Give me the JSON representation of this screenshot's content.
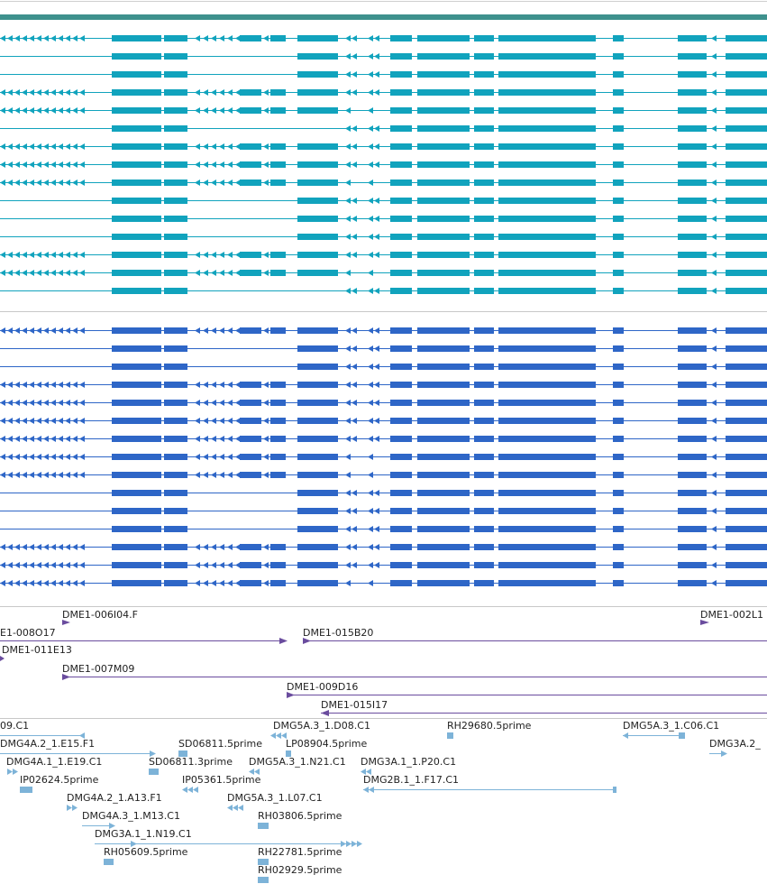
{
  "colors": {
    "header_bar": "#3E918D",
    "track_a": "#11A3BD",
    "track_b": "#2E66C7",
    "bac": "#6A4C9E",
    "est": "#7DB3D8",
    "divider": "#C8C8C8",
    "label": "#222222"
  },
  "gene_tracks": [
    {
      "name": "transcripts-cyan",
      "rows": [
        "full",
        "mid",
        "mid",
        "full",
        "alt",
        "short",
        "full",
        "full",
        "alt",
        "mid",
        "mid",
        "mid",
        "full",
        "alt",
        "short"
      ]
    },
    {
      "name": "transcripts-blue",
      "rows": [
        "full",
        "mid",
        "mid",
        "full",
        "full",
        "full",
        "full",
        "alt",
        "alt",
        "mid",
        "mid",
        "mid",
        "full",
        "full",
        "alt"
      ]
    }
  ],
  "bac_clones": [
    {
      "label": "DME1-006I04.F",
      "start": 69,
      "end": 78,
      "dir": "right"
    },
    {
      "label": "DME1-002L1",
      "start": 777,
      "end": 786,
      "dir": "right"
    },
    {
      "label": "E1-008O17",
      "start": 0,
      "end": 318,
      "dir": "left"
    },
    {
      "label": "DME1-015B20",
      "start": 336,
      "end": 851,
      "dir": "right"
    },
    {
      "label": "DME1-011E13",
      "start": 0,
      "end": 5,
      "dir": "right"
    },
    {
      "label": "DME1-007M09",
      "start": 69,
      "end": 851,
      "dir": "right"
    },
    {
      "label": "DME1-009D16",
      "start": 318,
      "end": 851,
      "dir": "right"
    },
    {
      "label": "DME1-015I17",
      "start": 356,
      "end": 851,
      "dir": "left"
    }
  ],
  "est_features": [
    {
      "label": "09.C1"
    },
    {
      "label": "DMG5A.3_1.D08.C1"
    },
    {
      "label": "RH29680.5prime"
    },
    {
      "label": "DMG5A.3_1.C06.C1"
    },
    {
      "label": "DMG4A.2_1.E15.F1"
    },
    {
      "label": "SD06811.5prime"
    },
    {
      "label": "LP08904.5prime"
    },
    {
      "label": "DMG3A.2_"
    },
    {
      "label": "DMG4A.1_1.E19.C1"
    },
    {
      "label": "SD06811.3prime"
    },
    {
      "label": "DMG5A.3_1.N21.C1"
    },
    {
      "label": "DMG3A.1_1.P20.C1"
    },
    {
      "label": "IP02624.5prime"
    },
    {
      "label": "IP05361.5prime"
    },
    {
      "label": "DMG2B.1_1.F17.C1"
    },
    {
      "label": "DMG4A.2_1.A13.F1"
    },
    {
      "label": "DMG5A.3_1.L07.C1"
    },
    {
      "label": "DMG4A.3_1.M13.C1"
    },
    {
      "label": "RH03806.5prime"
    },
    {
      "label": "DMG3A.1_1.N19.C1"
    },
    {
      "label": "RH05609.5prime"
    },
    {
      "label": "RH22781.5prime"
    },
    {
      "label": "RH02929.5prime"
    }
  ]
}
